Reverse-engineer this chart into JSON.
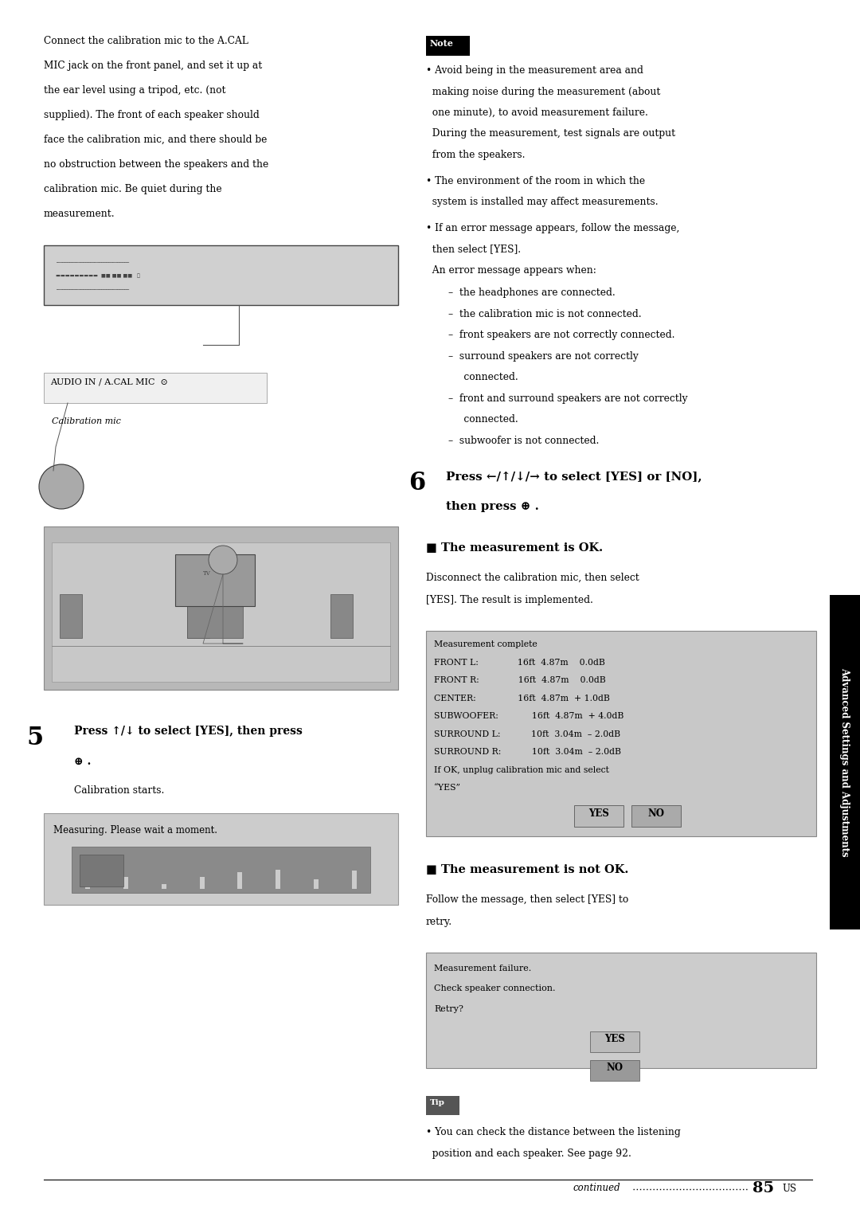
{
  "page_bg": "#ffffff",
  "page_width": 10.8,
  "page_height": 15.33,
  "intro_lines": [
    "Connect the calibration mic to the A.CAL",
    "MIC jack on the front panel, and set it up at",
    "the ear level using a tripod, etc. (not",
    "supplied). The front of each speaker should",
    "face the calibration mic, and there should be",
    "no obstruction between the speakers and the",
    "calibration mic. Be quiet during the",
    "measurement."
  ],
  "step5_label": "5",
  "step5_line1": "Press ↑/↓ to select [YES], then press",
  "step5_line2": "⊕ .",
  "step5_sub": "Calibration starts.",
  "measuring_text": "Measuring. Please wait a moment.",
  "note_label": "Note",
  "note_bullet1_lines": [
    "• Avoid being in the measurement area and",
    "  making noise during the measurement (about",
    "  one minute), to avoid measurement failure.",
    "  During the measurement, test signals are output",
    "  from the speakers."
  ],
  "note_bullet2_lines": [
    "• The environment of the room in which the",
    "  system is installed may affect measurements."
  ],
  "note_bullet3_lines": [
    "• If an error message appears, follow the message,",
    "  then select [YES].",
    "  An error message appears when:"
  ],
  "note_dash_items": [
    "–  the headphones are connected.",
    "–  the calibration mic is not connected.",
    "–  front speakers are not correctly connected.",
    "–  surround speakers are not correctly",
    "     connected.",
    "–  front and surround speakers are not correctly",
    "     connected.",
    "–  subwoofer is not connected."
  ],
  "step6_label": "6",
  "step6_line1": "Press ←/↑/↓/→ to select [YES] or [NO],",
  "step6_line2": "then press ⊕ .",
  "ok_heading": "■ The measurement is OK.",
  "ok_body1": "Disconnect the calibration mic, then select",
  "ok_body2": "[YES]. The result is implemented.",
  "mc_box_lines": [
    "Measurement complete",
    "FRONT L:              16ft  4.87m    0.0dB",
    "FRONT R:              16ft  4.87m    0.0dB",
    "CENTER:               16ft  4.87m  + 1.0dB",
    "SUBWOOFER:            16ft  4.87m  + 4.0dB",
    "SURROUND L:           10ft  3.04m  – 2.0dB",
    "SURROUND R:           10ft  3.04m  – 2.0dB",
    "If OK, unplug calibration mic and select",
    "“YES”"
  ],
  "notok_heading": "■ The measurement is not OK.",
  "notok_body1": "Follow the message, then select [YES] to",
  "notok_body2": "retry.",
  "fail_box_lines": [
    "Measurement failure.",
    "Check speaker connection.",
    "Retry?"
  ],
  "tip_label": "Tip",
  "tip_line1": "• You can check the distance between the listening",
  "tip_line2": "  position and each speaker. See page 92.",
  "continued_text": "continued",
  "page_num": "85",
  "page_suffix": "US",
  "sidebar_text": "Advanced Settings and Adjustments",
  "sidebar_bg": "#000000",
  "sidebar_fg": "#ffffff",
  "audio_label": "AUDIO IN / A.CAL MIC",
  "cal_mic_label": "Calibration mic",
  "device_color": "#c8c8c8",
  "scene_color": "#c0c0c0",
  "mbox_color": "#cccccc",
  "mcbox_color": "#c8c8c8",
  "failbox_color": "#cccccc"
}
